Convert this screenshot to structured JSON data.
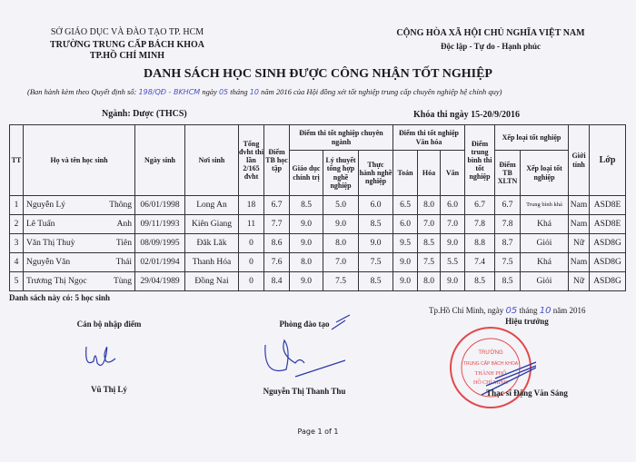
{
  "header": {
    "left_line1": "SỞ GIÁO DỤC VÀ ĐÀO TẠO TP. HCM",
    "left_line2": "TRƯỜNG TRUNG CẤP BÁCH KHOA",
    "left_line3": "TP.HỒ CHÍ MINH",
    "right_line1": "CỘNG HÒA XÃ HỘI CHỦ NGHĨA VIỆT NAM",
    "right_line2": "Độc lập - Tự do - Hạnh phúc"
  },
  "title": "DANH SÁCH HỌC SINH ĐƯỢC CÔNG NHẬN TỐT NGHIỆP",
  "subtitle": {
    "part1": "(Ban hành kèm theo Quyết định số:",
    "decision_no": "198/QĐ - BKHCM",
    "part2": "ngày",
    "day": "05",
    "part3": "tháng",
    "month": "10",
    "part4": "năm 2016 của Hội đồng xét tốt nghiệp trung cấp chuyên nghiệp hệ chính quy)"
  },
  "major": "Ngành: Dược (THCS)",
  "exam_period": "Khóa thi ngày 15-20/9/2016",
  "table": {
    "headers": {
      "tt": "TT",
      "name": "Họ và tên học sinh",
      "dob": "Ngày sinh",
      "place": "Nơi sinh",
      "credits": "Tổng đvht thi lần 2/165 đvht",
      "gpa": "Điểm TB học tập",
      "specialty_group": "Điểm thi tốt nghiệp chuyên ngành",
      "politics": "Giáo dục chính trị",
      "theory": "Lý thuyết tổng hợp nghề nghiệp",
      "practice": "Thực hành nghề nghiệp",
      "culture_group": "Điểm thi tốt nghiệp Văn hóa",
      "math": "Toán",
      "chem": "Hóa",
      "lit": "Văn",
      "exam_avg": "Điểm trung bình thi tốt nghiệp",
      "rank_group": "Xếp loại tốt nghiệp",
      "rank_score": "Điểm TB XLTN",
      "rank": "Xếp loại tốt nghiệp",
      "gender": "Giới tính",
      "class": "Lớp"
    },
    "rows": [
      {
        "tt": "1",
        "surname": "Nguyễn Lý",
        "given": "Thông",
        "dob": "06/01/1998",
        "place": "Long An",
        "credits": "18",
        "gpa": "6.7",
        "politics": "8.5",
        "theory": "5.0",
        "practice": "6.0",
        "math": "6.5",
        "chem": "8.0",
        "lit": "6.0",
        "exam_avg": "6.7",
        "rank_score": "6.7",
        "rank": "Trung bình khá",
        "gender": "Nam",
        "class": "ASD8E"
      },
      {
        "tt": "2",
        "surname": "Lê Tuấn",
        "given": "Anh",
        "dob": "09/11/1993",
        "place": "Kiên Giang",
        "credits": "11",
        "gpa": "7.7",
        "politics": "9.0",
        "theory": "9.0",
        "practice": "8.5",
        "math": "6.0",
        "chem": "7.0",
        "lit": "7.0",
        "exam_avg": "7.8",
        "rank_score": "7.8",
        "rank": "Khá",
        "gender": "Nam",
        "class": "ASD8E"
      },
      {
        "tt": "3",
        "surname": "Văn Thị Thuỳ",
        "given": "Tiên",
        "dob": "08/09/1995",
        "place": "Đăk Lăk",
        "credits": "0",
        "gpa": "8.6",
        "politics": "9.0",
        "theory": "8.0",
        "practice": "9.0",
        "math": "9.5",
        "chem": "8.5",
        "lit": "9.0",
        "exam_avg": "8.8",
        "rank_score": "8.7",
        "rank": "Giỏi",
        "gender": "Nữ",
        "class": "ASD8G"
      },
      {
        "tt": "4",
        "surname": "Nguyễn Văn",
        "given": "Thái",
        "dob": "02/01/1994",
        "place": "Thanh Hóa",
        "credits": "0",
        "gpa": "7.6",
        "politics": "8.0",
        "theory": "7.0",
        "practice": "7.5",
        "math": "9.0",
        "chem": "7.5",
        "lit": "5.5",
        "exam_avg": "7.4",
        "rank_score": "7.5",
        "rank": "Khá",
        "gender": "Nam",
        "class": "ASD8G"
      },
      {
        "tt": "5",
        "surname": "Trương Thị Ngọc",
        "given": "Tùng",
        "dob": "29/04/1989",
        "place": "Đồng Nai",
        "credits": "0",
        "gpa": "8.4",
        "politics": "9.0",
        "theory": "7.5",
        "practice": "8.5",
        "math": "9.0",
        "chem": "8.0",
        "lit": "9.0",
        "exam_avg": "8.5",
        "rank_score": "8.5",
        "rank": "Giỏi",
        "gender": "Nữ",
        "class": "ASD8G"
      }
    ]
  },
  "summary": "Danh sách này có: 5 học sinh",
  "signatures": {
    "date_part1": "Tp.Hồ Chí Minh, ngày",
    "date_day": "05",
    "date_part2": "tháng",
    "date_month": "10",
    "date_part3": "năm 2016",
    "left_role": "Cán bộ nhập điểm",
    "left_name": "Vũ Thị Lý",
    "mid_role": "Phòng đào tạo",
    "mid_name": "Nguyễn Thị Thanh Thu",
    "right_role": "Hiệu trưởng",
    "right_name": "Thạc sĩ Đặng Văn Sáng",
    "stamp_text": "TRƯỜNG TRUNG CẤP BÁCH KHOA THÀNH PHỐ HỒ CHÍ MINH"
  },
  "footer": "Page 1 of 1",
  "colors": {
    "ink": "#1a1a1a",
    "handwriting": "#4a52c8",
    "stamp": "#e04a4a",
    "paper": "#f4f3f8"
  }
}
